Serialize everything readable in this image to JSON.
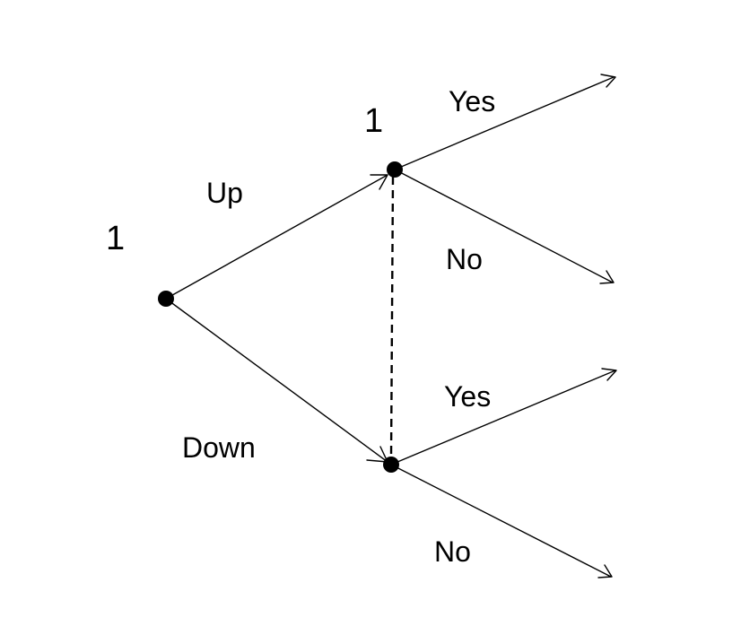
{
  "diagram": {
    "type": "game-tree",
    "colors": {
      "ink": "#000000",
      "background": "#ffffff"
    },
    "players": {
      "root": "1",
      "second": "1"
    },
    "actions": {
      "up": "Up",
      "down": "Down",
      "top_yes": "Yes",
      "top_no": "No",
      "bottom_yes": "Yes",
      "bottom_no": "No"
    }
  }
}
